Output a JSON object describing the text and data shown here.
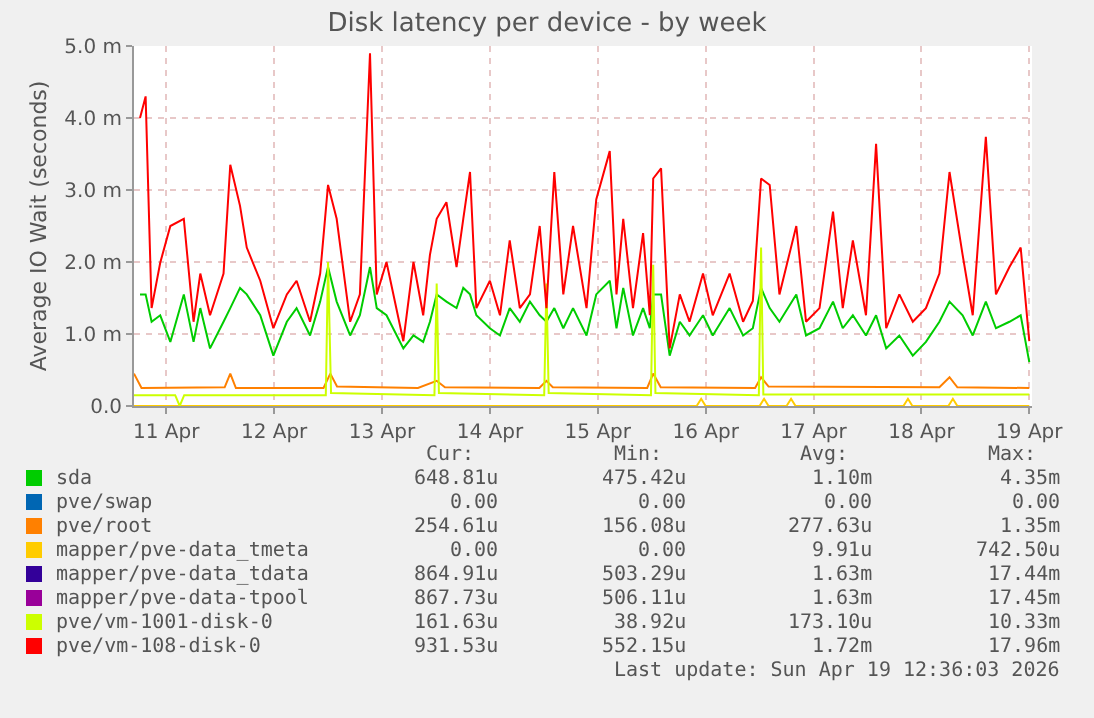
{
  "chart_data": {
    "type": "line",
    "title": "Disk latency per device - by week",
    "ylabel": "Average IO Wait (seconds)",
    "x": [
      "2026-04-11T06:10",
      "2026-04-11T07:25",
      "2026-04-11T08:45",
      "2026-04-11T10:40",
      "2026-04-11T12:55",
      "2026-04-11T15:55",
      "2026-04-11T18:05",
      "2026-04-11T19:35",
      "2026-04-11T21:45",
      "2026-04-12T00:45",
      "2026-04-12T02:15",
      "2026-04-12T04:25",
      "2026-04-12T05:55",
      "2026-04-12T08:55",
      "2026-04-12T11:50",
      "2026-04-12T14:50",
      "2026-04-12T17:00",
      "2026-04-12T20:00",
      "2026-04-12T22:15",
      "2026-04-13T00:00",
      "2026-04-13T01:55",
      "2026-04-13T04:55",
      "2026-04-13T07:05",
      "2026-04-13T09:20",
      "2026-04-13T10:50",
      "2026-04-13T13:00",
      "2026-04-13T16:45",
      "2026-04-13T19:00",
      "2026-04-13T21:10",
      "2026-04-13T22:40",
      "2026-04-14T00:10",
      "2026-04-14T02:20",
      "2026-04-14T04:35",
      "2026-04-14T06:05",
      "2026-04-14T07:35",
      "2026-04-14T09:00",
      "2026-04-14T12:00",
      "2026-04-14T14:15",
      "2026-04-14T16:25",
      "2026-04-14T18:40",
      "2026-04-14T20:55",
      "2026-04-14T23:05",
      "2026-04-15T00:35",
      "2026-04-15T02:20",
      "2026-04-15T04:20",
      "2026-04-15T06:30",
      "2026-04-15T09:30",
      "2026-04-15T11:40",
      "2026-04-15T14:40",
      "2026-04-15T16:10",
      "2026-04-15T17:40",
      "2026-04-15T19:50",
      "2026-04-15T22:05",
      "2026-04-15T23:35",
      "2026-04-16T00:20",
      "2026-04-16T02:05",
      "2026-04-16T04:00",
      "2026-04-16T06:15",
      "2026-04-16T08:25",
      "2026-04-16T11:25",
      "2026-04-16T13:35",
      "2026-04-16T17:20",
      "2026-04-16T20:20",
      "2026-04-16T22:30",
      "2026-04-17T00:20",
      "2026-04-17T02:15",
      "2026-04-17T04:25",
      "2026-04-17T08:10",
      "2026-04-17T10:20",
      "2026-04-17T13:20",
      "2026-04-17T16:20",
      "2026-04-17T18:30",
      "2026-04-17T20:45",
      "2026-04-17T23:40",
      "2026-04-18T01:55",
      "2026-04-18T04:10",
      "2026-04-18T07:05",
      "2026-04-18T10:05",
      "2026-04-18T13:00",
      "2026-04-18T16:00",
      "2026-04-18T18:15",
      "2026-04-18T21:10",
      "2026-04-18T23:25",
      "2026-04-19T02:20",
      "2026-04-19T04:35",
      "2026-04-19T07:35",
      "2026-04-19T10:05",
      "2026-04-19T12:00"
    ],
    "xlim": [
      "2026-04-11T04:50",
      "2026-04-19T12:36"
    ],
    "xticks": [
      {
        "value": "2026-04-11T12:00",
        "label": "11 Apr"
      },
      {
        "value": "2026-04-12T12:00",
        "label": "12 Apr"
      },
      {
        "value": "2026-04-13T12:00",
        "label": "13 Apr"
      },
      {
        "value": "2026-04-14T12:00",
        "label": "14 Apr"
      },
      {
        "value": "2026-04-15T12:00",
        "label": "15 Apr"
      },
      {
        "value": "2026-04-16T12:00",
        "label": "16 Apr"
      },
      {
        "value": "2026-04-17T12:00",
        "label": "17 Apr"
      },
      {
        "value": "2026-04-18T12:00",
        "label": "18 Apr"
      },
      {
        "value": "2026-04-19T12:00",
        "label": "19 Apr"
      }
    ],
    "ylim": [
      0,
      5
    ],
    "yticks": [
      {
        "value": 0,
        "label": "0.0"
      },
      {
        "value": 1,
        "label": "1.0 m"
      },
      {
        "value": 2,
        "label": "2.0 m"
      },
      {
        "value": 3,
        "label": "3.0 m"
      },
      {
        "value": 4,
        "label": "4.0 m"
      },
      {
        "value": 5,
        "label": "5.0 m"
      }
    ],
    "grid": true,
    "legend": "bottom",
    "marker": "none",
    "line_style": "solid",
    "series": [
      {
        "name": "sda",
        "color": "#00cc00",
        "values": [
          1.55,
          1.55,
          1.17,
          1.26,
          0.89,
          1.55,
          0.89,
          1.36,
          0.8,
          1.17,
          1.36,
          1.64,
          1.55,
          1.26,
          0.7,
          1.17,
          1.36,
          0.98,
          1.45,
          1.93,
          1.45,
          0.98,
          1.26,
          1.93,
          1.36,
          1.26,
          0.8,
          0.98,
          0.89,
          1.17,
          1.55,
          1.45,
          1.36,
          1.64,
          1.55,
          1.26,
          1.08,
          0.98,
          1.36,
          1.17,
          1.45,
          1.26,
          1.17,
          1.36,
          1.08,
          1.36,
          0.98,
          1.55,
          1.74,
          1.08,
          1.64,
          0.98,
          1.36,
          1.08,
          1.55,
          1.55,
          0.7,
          1.17,
          0.98,
          1.26,
          0.98,
          1.36,
          0.98,
          1.08,
          1.64,
          1.36,
          1.17,
          1.55,
          0.98,
          1.08,
          1.45,
          1.08,
          1.26,
          0.98,
          1.26,
          0.8,
          0.98,
          0.7,
          0.89,
          1.17,
          1.45,
          1.26,
          0.98,
          1.45,
          1.08,
          1.17,
          1.26,
          0.61
        ]
      },
      {
        "name": "pve/swap",
        "color": "#0066b3",
        "values": [
          null,
          null,
          null,
          null,
          null,
          null,
          null,
          null,
          null,
          null,
          null,
          null,
          null,
          null,
          null,
          null,
          null,
          null,
          null,
          null,
          null,
          null,
          null,
          null,
          null,
          null,
          null,
          null,
          null,
          null,
          null,
          null,
          null,
          null,
          null,
          null,
          null,
          null,
          null,
          null,
          null,
          null,
          null,
          null,
          null,
          null,
          null,
          null,
          null,
          null,
          null,
          null,
          null,
          null,
          null,
          null,
          null,
          null,
          null,
          null,
          null,
          null,
          null,
          null,
          null,
          null,
          null,
          null,
          null,
          null,
          null,
          null,
          null,
          null,
          null,
          null,
          null,
          null,
          null,
          null,
          null,
          null,
          null,
          null,
          null,
          null,
          null,
          null
        ]
      },
      {
        "name": "pve/root",
        "color": "#ff8000",
        "x": [
          "2026-04-11T04:50",
          "2026-04-11T06:30",
          "2026-04-12T01:00",
          "2026-04-12T02:15",
          "2026-04-12T03:30",
          "2026-04-12T23:00",
          "2026-04-13T00:30",
          "2026-04-13T02:00",
          "2026-04-13T20:00",
          "2026-04-14T00:10",
          "2026-04-14T02:00",
          "2026-04-14T23:00",
          "2026-04-15T00:35",
          "2026-04-15T02:00",
          "2026-04-15T23:00",
          "2026-04-16T00:20",
          "2026-04-16T02:00",
          "2026-04-16T23:00",
          "2026-04-17T00:20",
          "2026-04-17T02:00",
          "2026-04-18T16:00",
          "2026-04-18T18:15",
          "2026-04-18T20:00",
          "2026-04-19T12:00"
        ],
        "values": [
          0.45,
          0.25,
          0.26,
          0.45,
          0.25,
          0.25,
          0.45,
          0.27,
          0.25,
          0.35,
          0.26,
          0.25,
          0.35,
          0.26,
          0.25,
          0.45,
          0.26,
          0.25,
          0.4,
          0.27,
          0.26,
          0.4,
          0.26,
          0.25
        ]
      },
      {
        "name": "mapper/pve-data_tmeta",
        "color": "#ffcc00",
        "x": [
          "2026-04-11T04:50",
          "2026-04-16T10:00",
          "2026-04-16T11:00",
          "2026-04-16T12:00",
          "2026-04-17T00:00",
          "2026-04-17T01:00",
          "2026-04-17T02:00",
          "2026-04-17T06:00",
          "2026-04-17T07:00",
          "2026-04-17T08:00",
          "2026-04-18T08:00",
          "2026-04-18T09:00",
          "2026-04-18T10:00",
          "2026-04-18T18:00",
          "2026-04-18T19:00",
          "2026-04-18T20:00",
          "2026-04-19T12:00"
        ],
        "values": [
          0,
          0,
          0.1,
          0,
          0,
          0.1,
          0,
          0,
          0.1,
          0,
          0,
          0.1,
          0,
          0,
          0.1,
          0,
          0
        ]
      },
      {
        "name": "mapper/pve-data_tdata",
        "color": "#330099",
        "values": [
          null,
          null,
          null,
          null,
          null,
          null,
          null,
          null,
          null,
          null,
          null,
          null,
          null,
          null,
          null,
          null,
          null,
          null,
          null,
          null,
          null,
          null,
          null,
          null,
          null,
          null,
          null,
          null,
          null,
          null,
          null,
          null,
          null,
          null,
          null,
          null,
          null,
          null,
          null,
          null,
          null,
          null,
          null,
          null,
          null,
          null,
          null,
          null,
          null,
          null,
          null,
          null,
          null,
          null,
          null,
          null,
          null,
          null,
          null,
          null,
          null,
          null,
          null,
          null,
          null,
          null,
          null,
          null,
          null,
          null,
          null,
          null,
          null,
          null,
          null,
          null,
          null,
          null,
          null,
          null,
          null,
          null,
          null,
          null,
          null,
          null,
          null,
          null
        ]
      },
      {
        "name": "mapper/pve-data-tpool",
        "color": "#990099",
        "values": [
          null,
          null,
          null,
          null,
          null,
          null,
          null,
          null,
          null,
          null,
          null,
          null,
          null,
          null,
          null,
          null,
          null,
          null,
          null,
          null,
          null,
          null,
          null,
          null,
          null,
          null,
          null,
          null,
          null,
          null,
          null,
          null,
          null,
          null,
          null,
          null,
          null,
          null,
          null,
          null,
          null,
          null,
          null,
          null,
          null,
          null,
          null,
          null,
          null,
          null,
          null,
          null,
          null,
          null,
          null,
          null,
          null,
          null,
          null,
          null,
          null,
          null,
          null,
          null,
          null,
          null,
          null,
          null,
          null,
          null,
          null,
          null,
          null,
          null,
          null,
          null,
          null,
          null,
          null,
          null,
          null,
          null,
          null,
          null,
          null,
          null,
          null,
          null
        ]
      },
      {
        "name": "pve/vm-1001-disk-0",
        "color": "#ccff00",
        "x": [
          "2026-04-11T04:50",
          "2026-04-11T14:00",
          "2026-04-11T15:00",
          "2026-04-11T16:00",
          "2026-04-12T23:30",
          "2026-04-13T00:00",
          "2026-04-13T00:40",
          "2026-04-13T23:40",
          "2026-04-14T00:10",
          "2026-04-14T00:40",
          "2026-04-15T00:05",
          "2026-04-15T00:35",
          "2026-04-15T01:05",
          "2026-04-15T23:50",
          "2026-04-16T00:20",
          "2026-04-16T00:50",
          "2026-04-16T23:50",
          "2026-04-17T00:20",
          "2026-04-17T00:50",
          "2026-04-19T12:00"
        ],
        "values": [
          0.15,
          0.15,
          0,
          0.15,
          0.15,
          2,
          0.18,
          0.15,
          1.7,
          0.18,
          0.15,
          1.7,
          0.18,
          0.15,
          1.96,
          0.18,
          0.15,
          2.2,
          0.16,
          0.16
        ]
      },
      {
        "name": "pve/vm-108-disk-0",
        "color": "#ff0000",
        "values": [
          4,
          4.3,
          1.36,
          1.99,
          2.5,
          2.6,
          1.17,
          1.84,
          1.26,
          1.84,
          3.35,
          2.78,
          2.2,
          1.74,
          1.08,
          1.55,
          1.74,
          1.17,
          1.84,
          3.07,
          2.6,
          1.17,
          1.55,
          4.9,
          1.55,
          2,
          0.9,
          2,
          1.26,
          2.1,
          2.6,
          2.83,
          1.93,
          2.6,
          3.25,
          1.36,
          1.74,
          1.26,
          2.3,
          1.36,
          1.55,
          2.5,
          1.36,
          3.25,
          1.55,
          2.5,
          1.36,
          2.87,
          3.54,
          1.55,
          2.6,
          1.36,
          2.4,
          1.26,
          3.16,
          3.3,
          0.8,
          1.55,
          1.17,
          1.84,
          1.26,
          1.84,
          1.17,
          1.46,
          3.16,
          3.07,
          1.55,
          2.5,
          1.17,
          1.36,
          2.7,
          1.36,
          2.3,
          1.26,
          3.64,
          1.08,
          1.55,
          1.17,
          1.36,
          1.84,
          3.25,
          2.1,
          1.26,
          3.74,
          1.55,
          1.93,
          2.2,
          0.9
        ]
      }
    ],
    "annotations": [
      "Cur:",
      "Min:",
      "Avg:",
      "Max:",
      "648.81u",
      "475.42u",
      "1.10m",
      "4.35m",
      "0.00",
      "0.00",
      "0.00",
      "0.00",
      "254.61u",
      "156.08u",
      "277.63u",
      "1.35m",
      "0.00",
      "0.00",
      "9.91u",
      "742.50u",
      "864.91u",
      "503.29u",
      "1.63m",
      "17.44m",
      "867.73u",
      "506.11u",
      "1.63m",
      "17.45m",
      "161.63u",
      "38.92u",
      "173.10u",
      "10.33m",
      "931.53u",
      "552.15u",
      "1.72m",
      "17.96m",
      "Last update: Sun Apr 19 12:36:03 2026"
    ]
  }
}
